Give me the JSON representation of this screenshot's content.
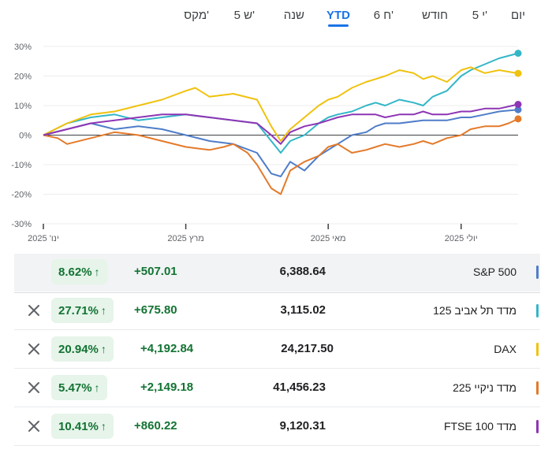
{
  "tabs": [
    {
      "label": "יום",
      "active": false
    },
    {
      "label": "5 י'",
      "active": false
    },
    {
      "label": "חודש",
      "active": false
    },
    {
      "label": "6 ח'",
      "active": false
    },
    {
      "label": "YTD",
      "active": true
    },
    {
      "label": "שנה",
      "active": false
    },
    {
      "label": "5 ש'",
      "active": false
    },
    {
      "label": "מקס'",
      "active": false
    }
  ],
  "chart_data": {
    "type": "line",
    "ylim": [
      -30,
      30
    ],
    "yticks": [
      30,
      20,
      10,
      0,
      -10,
      -20,
      -30
    ],
    "ytick_labels": [
      "30%",
      "20%",
      "10%",
      "0%",
      "-10%",
      "-20%",
      "-30%"
    ],
    "x_range": [
      0,
      100
    ],
    "xticks": [
      {
        "x": 0,
        "label": "ינו' 2025"
      },
      {
        "x": 30,
        "label": "מרץ 2025"
      },
      {
        "x": 60,
        "label": "מאי 2025"
      },
      {
        "x": 88,
        "label": "יולי 2025"
      }
    ],
    "series": [
      {
        "name": "S&P 500",
        "color": "#4f7dc9",
        "x": [
          0,
          5,
          10,
          15,
          20,
          25,
          30,
          35,
          40,
          45,
          48,
          50,
          52,
          55,
          58,
          60,
          62,
          65,
          68,
          70,
          72,
          75,
          80,
          85,
          88,
          90,
          93,
          96,
          100
        ],
        "y": [
          0,
          2,
          4,
          2,
          3,
          2,
          0,
          -2,
          -3,
          -6,
          -13,
          -14,
          -9,
          -12,
          -7,
          -5,
          -3,
          0,
          1,
          3,
          4,
          4,
          5,
          5,
          6,
          6,
          7,
          8,
          8.6
        ]
      },
      {
        "name": "מדד תל אביב 125",
        "color": "#33b6c8",
        "x": [
          0,
          5,
          10,
          15,
          20,
          25,
          30,
          35,
          40,
          45,
          48,
          50,
          52,
          55,
          58,
          60,
          62,
          65,
          68,
          70,
          72,
          75,
          78,
          80,
          82,
          85,
          88,
          90,
          93,
          96,
          100
        ],
        "y": [
          0,
          4,
          6,
          7,
          5,
          6,
          7,
          6,
          5,
          4,
          -2,
          -6,
          -2,
          0,
          4,
          6,
          7,
          8,
          10,
          11,
          10,
          12,
          11,
          10,
          13,
          15,
          20,
          22,
          24,
          26,
          27.7
        ]
      },
      {
        "name": "DAX",
        "color": "#f0c20e",
        "x": [
          0,
          5,
          10,
          15,
          20,
          25,
          30,
          32,
          35,
          40,
          45,
          48,
          50,
          52,
          55,
          58,
          60,
          62,
          65,
          68,
          70,
          72,
          75,
          78,
          80,
          82,
          85,
          88,
          90,
          93,
          96,
          100
        ],
        "y": [
          0,
          4,
          7,
          8,
          10,
          12,
          15,
          16,
          13,
          14,
          12,
          3,
          -2,
          2,
          6,
          10,
          12,
          13,
          16,
          18,
          19,
          20,
          22,
          21,
          19,
          20,
          18,
          22,
          23,
          21,
          22,
          20.9
        ]
      },
      {
        "name": "מדד ניקיי 225",
        "color": "#e37a2a",
        "x": [
          0,
          3,
          5,
          10,
          15,
          20,
          25,
          30,
          35,
          38,
          40,
          43,
          45,
          48,
          50,
          52,
          55,
          58,
          60,
          62,
          65,
          68,
          70,
          72,
          75,
          78,
          80,
          82,
          85,
          88,
          90,
          93,
          96,
          98,
          100
        ],
        "y": [
          0,
          -1,
          -3,
          -1,
          1,
          0,
          -2,
          -4,
          -5,
          -4,
          -3,
          -6,
          -10,
          -18,
          -20,
          -12,
          -9,
          -7,
          -4,
          -3,
          -6,
          -5,
          -4,
          -3,
          -4,
          -3,
          -2,
          -3,
          -1,
          0,
          2,
          3,
          3,
          4,
          5.5
        ]
      },
      {
        "name": "מדד FTSE 100",
        "color": "#8e35b5",
        "x": [
          0,
          5,
          10,
          15,
          20,
          25,
          30,
          35,
          40,
          45,
          48,
          50,
          52,
          55,
          58,
          60,
          62,
          65,
          68,
          70,
          72,
          75,
          78,
          80,
          82,
          85,
          88,
          90,
          93,
          96,
          100
        ],
        "y": [
          0,
          2,
          4,
          5,
          6,
          7,
          7,
          6,
          5,
          4,
          0,
          -3,
          1,
          3,
          4,
          5,
          6,
          7,
          7,
          7,
          6,
          7,
          7,
          8,
          7,
          7,
          8,
          8,
          9,
          9,
          10.4
        ]
      }
    ]
  },
  "rows": [
    {
      "name": "S&P 500",
      "price": "6,388.64",
      "change": "+507.01",
      "pct": "8.62%",
      "color": "#4f7dc9",
      "closable": false
    },
    {
      "name": "מדד תל אביב 125",
      "price": "3,115.02",
      "change": "+675.80",
      "pct": "27.71%",
      "color": "#33b6c8",
      "closable": true
    },
    {
      "name": "DAX",
      "price": "24,217.50",
      "change": "+4,192.84",
      "pct": "20.94%",
      "color": "#f0c20e",
      "closable": true
    },
    {
      "name": "מדד ניקיי 225",
      "price": "41,456.23",
      "change": "+2,149.18",
      "pct": "5.47%",
      "color": "#e37a2a",
      "closable": true
    },
    {
      "name": "מדד FTSE 100",
      "price": "9,120.31",
      "change": "+860.22",
      "pct": "10.41%",
      "color": "#8e35b5",
      "closable": true
    }
  ]
}
